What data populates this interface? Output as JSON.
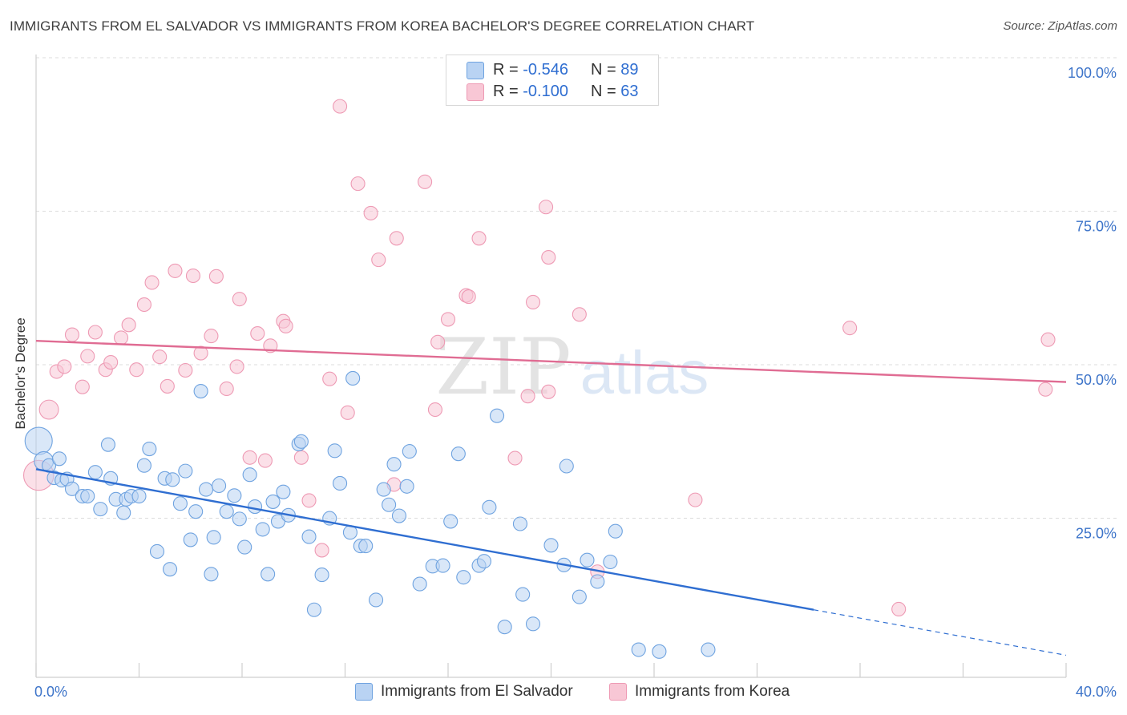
{
  "title": "IMMIGRANTS FROM EL SALVADOR VS IMMIGRANTS FROM KOREA BACHELOR'S DEGREE CORRELATION CHART",
  "source": "Source: ZipAtlas.com",
  "watermark": {
    "zip": "ZIP",
    "atlas": "atlas"
  },
  "legend_top": [
    {
      "r_label": "R = ",
      "r_value": "-0.546",
      "n_label": "N = ",
      "n_value": "89"
    },
    {
      "r_label": "R = ",
      "r_value": "-0.100",
      "n_label": "N = ",
      "n_value": "63"
    }
  ],
  "chart_data": {
    "type": "scatter",
    "title": "IMMIGRANTS FROM EL SALVADOR VS IMMIGRANTS FROM KOREA BACHELOR'S DEGREE CORRELATION CHART",
    "xlabel": "",
    "ylabel": "Bachelor's Degree",
    "xlim": [
      0,
      40
    ],
    "ylim": [
      0,
      100
    ],
    "x_tick_labels": [
      "0.0%",
      "40.0%"
    ],
    "y_tick_labels": [
      "100.0%",
      "75.0%",
      "50.0%",
      "25.0%"
    ],
    "y_ticks": [
      100,
      75,
      50,
      25
    ],
    "grid": true,
    "legend_position": "bottom-center",
    "series": [
      {
        "name": "Immigrants from El Salvador",
        "color": "#6fa3e0",
        "fill": "#b9d3f3",
        "trend_color": "#2f6ed1",
        "r": -0.546,
        "n": 89,
        "trend": {
          "x_start": 0,
          "y_start": 33.9,
          "x_solid_end": 30.2,
          "y_solid_end": 11.0,
          "x_end": 40,
          "y_end": 3.6
        },
        "points": [
          [
            0.1,
            38.5,
            2
          ],
          [
            0.3,
            35.2,
            1.4
          ],
          [
            0.5,
            34.5,
            1
          ],
          [
            0.7,
            32.5,
            1
          ],
          [
            0.9,
            35.6,
            1
          ],
          [
            1.0,
            32.1,
            1
          ],
          [
            1.2,
            32.3,
            1
          ],
          [
            1.4,
            30.7,
            1
          ],
          [
            1.8,
            29.5,
            1
          ],
          [
            2.0,
            29.5,
            1
          ],
          [
            2.3,
            33.4,
            1
          ],
          [
            2.5,
            27.4,
            1
          ],
          [
            2.8,
            37.9,
            1
          ],
          [
            2.9,
            32.4,
            1
          ],
          [
            3.1,
            29.0,
            1
          ],
          [
            3.4,
            26.8,
            1
          ],
          [
            3.5,
            29.0,
            1
          ],
          [
            3.7,
            29.5,
            1
          ],
          [
            4.0,
            29.5,
            1
          ],
          [
            4.2,
            34.5,
            1
          ],
          [
            4.4,
            37.2,
            1
          ],
          [
            4.7,
            20.5,
            1
          ],
          [
            5.0,
            32.4,
            1
          ],
          [
            5.2,
            17.6,
            1
          ],
          [
            5.3,
            32.2,
            1
          ],
          [
            5.6,
            28.3,
            1
          ],
          [
            5.8,
            33.6,
            1
          ],
          [
            6.0,
            22.4,
            1
          ],
          [
            6.2,
            27.0,
            1
          ],
          [
            6.4,
            46.6,
            1
          ],
          [
            6.6,
            30.6,
            1
          ],
          [
            6.8,
            16.8,
            1
          ],
          [
            6.9,
            22.8,
            1
          ],
          [
            7.1,
            31.2,
            1
          ],
          [
            7.4,
            27.0,
            1
          ],
          [
            7.7,
            29.6,
            1
          ],
          [
            7.9,
            25.8,
            1
          ],
          [
            8.1,
            21.2,
            1
          ],
          [
            8.3,
            33.0,
            1
          ],
          [
            8.5,
            27.8,
            1
          ],
          [
            8.8,
            24.1,
            1
          ],
          [
            9.0,
            16.8,
            1
          ],
          [
            9.2,
            28.6,
            1
          ],
          [
            9.4,
            25.4,
            1
          ],
          [
            9.6,
            30.2,
            1
          ],
          [
            9.8,
            26.4,
            1
          ],
          [
            10.2,
            38.0,
            1
          ],
          [
            10.3,
            38.4,
            1
          ],
          [
            10.6,
            22.9,
            1
          ],
          [
            10.8,
            11.0,
            1
          ],
          [
            11.1,
            16.7,
            1
          ],
          [
            11.4,
            25.9,
            1
          ],
          [
            11.6,
            36.9,
            1
          ],
          [
            11.8,
            31.6,
            1
          ],
          [
            12.2,
            23.6,
            1
          ],
          [
            12.3,
            48.7,
            1
          ],
          [
            12.6,
            21.4,
            1
          ],
          [
            12.8,
            21.4,
            1
          ],
          [
            13.2,
            12.6,
            1
          ],
          [
            13.5,
            30.6,
            1
          ],
          [
            13.7,
            28.1,
            1
          ],
          [
            13.9,
            34.7,
            1
          ],
          [
            14.1,
            26.3,
            1
          ],
          [
            14.4,
            31.1,
            1
          ],
          [
            14.5,
            36.8,
            1
          ],
          [
            14.9,
            15.2,
            1
          ],
          [
            15.4,
            18.1,
            1
          ],
          [
            15.8,
            18.2,
            1
          ],
          [
            16.1,
            25.4,
            1
          ],
          [
            16.4,
            36.4,
            1
          ],
          [
            16.6,
            16.3,
            1
          ],
          [
            17.2,
            18.2,
            1
          ],
          [
            17.4,
            18.9,
            1
          ],
          [
            17.6,
            27.7,
            1
          ],
          [
            17.9,
            42.6,
            1
          ],
          [
            18.2,
            8.2,
            1
          ],
          [
            18.8,
            25.0,
            1
          ],
          [
            18.9,
            13.5,
            1
          ],
          [
            19.3,
            8.7,
            1
          ],
          [
            20.0,
            21.5,
            1
          ],
          [
            20.5,
            18.3,
            1
          ],
          [
            20.6,
            34.4,
            1
          ],
          [
            21.1,
            13.1,
            1
          ],
          [
            21.4,
            19.1,
            1
          ],
          [
            21.8,
            15.6,
            1
          ],
          [
            22.3,
            18.8,
            1
          ],
          [
            22.5,
            23.8,
            1
          ],
          [
            23.4,
            4.5,
            1
          ],
          [
            24.2,
            4.2,
            1
          ],
          [
            26.1,
            4.5,
            1
          ]
        ]
      },
      {
        "name": "Immigrants from Korea",
        "color": "#ee9ab4",
        "fill": "#f8c7d5",
        "trend_color": "#e06c93",
        "r": -0.1,
        "n": 63,
        "trend": {
          "x_start": 0,
          "y_start": 54.8,
          "x_solid_end": 40,
          "y_solid_end": 48.1,
          "x_end": 40,
          "y_end": 48.1
        },
        "points": [
          [
            0.1,
            32.9,
            2.2
          ],
          [
            0.5,
            43.6,
            1.4
          ],
          [
            0.8,
            49.8,
            1
          ],
          [
            1.1,
            50.6,
            1
          ],
          [
            1.4,
            55.8,
            1
          ],
          [
            1.8,
            47.3,
            1
          ],
          [
            2.0,
            52.3,
            1
          ],
          [
            2.3,
            56.2,
            1
          ],
          [
            2.7,
            50.1,
            1
          ],
          [
            2.9,
            51.3,
            1
          ],
          [
            3.3,
            55.3,
            1
          ],
          [
            3.6,
            57.4,
            1
          ],
          [
            3.9,
            50.1,
            1
          ],
          [
            4.2,
            60.7,
            1
          ],
          [
            4.5,
            64.3,
            1
          ],
          [
            4.8,
            52.2,
            1
          ],
          [
            5.1,
            47.4,
            1
          ],
          [
            5.4,
            66.2,
            1
          ],
          [
            5.8,
            50.0,
            1
          ],
          [
            6.1,
            65.4,
            1
          ],
          [
            6.4,
            52.8,
            1
          ],
          [
            6.8,
            55.6,
            1
          ],
          [
            7.0,
            65.3,
            1
          ],
          [
            7.4,
            47.0,
            1
          ],
          [
            7.8,
            50.6,
            1
          ],
          [
            7.9,
            61.6,
            1
          ],
          [
            8.3,
            35.8,
            1
          ],
          [
            8.6,
            56.0,
            1
          ],
          [
            8.9,
            35.3,
            1
          ],
          [
            9.1,
            54.0,
            1
          ],
          [
            9.6,
            58.0,
            1
          ],
          [
            9.7,
            57.2,
            1
          ],
          [
            10.3,
            35.8,
            1
          ],
          [
            10.6,
            28.8,
            1
          ],
          [
            11.1,
            20.7,
            1
          ],
          [
            11.4,
            48.6,
            1
          ],
          [
            11.8,
            93.0,
            1
          ],
          [
            12.1,
            43.1,
            1
          ],
          [
            12.5,
            80.4,
            1
          ],
          [
            13.0,
            75.6,
            1
          ],
          [
            13.3,
            68.0,
            1
          ],
          [
            13.9,
            31.4,
            1
          ],
          [
            14.0,
            71.5,
            1
          ],
          [
            15.1,
            80.7,
            1
          ],
          [
            15.5,
            43.6,
            1
          ],
          [
            15.6,
            54.6,
            1
          ],
          [
            16.0,
            58.3,
            1
          ],
          [
            16.7,
            62.2,
            1
          ],
          [
            16.8,
            62.0,
            1
          ],
          [
            17.2,
            71.5,
            1
          ],
          [
            18.6,
            35.7,
            1
          ],
          [
            19.1,
            45.8,
            1
          ],
          [
            19.3,
            61.1,
            1
          ],
          [
            19.8,
            76.6,
            1
          ],
          [
            19.9,
            46.5,
            1
          ],
          [
            19.9,
            68.4,
            1
          ],
          [
            21.1,
            59.1,
            1
          ],
          [
            21.8,
            17.2,
            1
          ],
          [
            25.6,
            28.9,
            1
          ],
          [
            31.6,
            56.9,
            1
          ],
          [
            33.5,
            11.1,
            1
          ],
          [
            39.2,
            46.9,
            1
          ],
          [
            39.3,
            55.0,
            1
          ]
        ]
      }
    ]
  }
}
